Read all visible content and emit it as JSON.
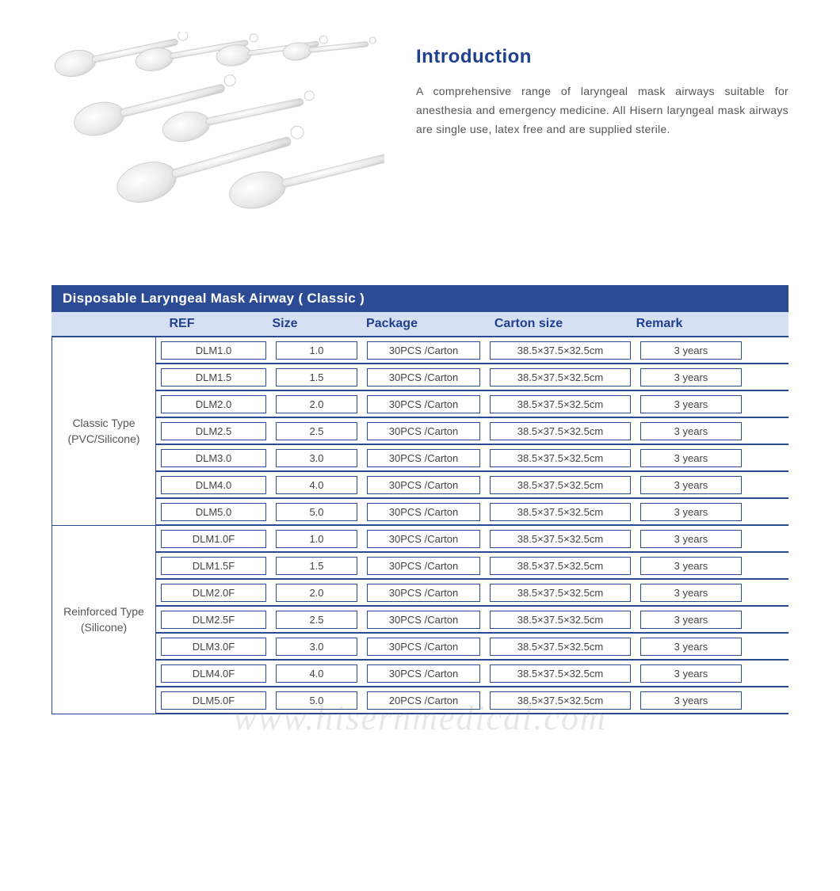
{
  "intro": {
    "title": "Introduction",
    "text": "A comprehensive range of laryngeal mask airways suitable for anesthesia and emergency medicine. All Hisern laryngeal mask airways are single use, latex free and are supplied sterile."
  },
  "section_title": "Disposable Laryngeal Mask Airway ( Classic )",
  "columns": {
    "ref": "REF",
    "size": "Size",
    "package": "Package",
    "carton": "Carton  size",
    "remark": "Remark"
  },
  "colors": {
    "brand_blue": "#2c4b95",
    "title_blue": "#1f3f8f",
    "header_bg": "#d6e0f2",
    "text_gray": "#555555",
    "white": "#ffffff",
    "watermark": "rgba(120,120,120,0.18)"
  },
  "groups": [
    {
      "type_label": "Classic Type\n(PVC/Silicone)",
      "rows": [
        {
          "ref": "DLM1.0",
          "size": "1.0",
          "package": "30PCS /Carton",
          "carton": "38.5×37.5×32.5cm",
          "remark": "3 years"
        },
        {
          "ref": "DLM1.5",
          "size": "1.5",
          "package": "30PCS /Carton",
          "carton": "38.5×37.5×32.5cm",
          "remark": "3 years"
        },
        {
          "ref": "DLM2.0",
          "size": "2.0",
          "package": "30PCS /Carton",
          "carton": "38.5×37.5×32.5cm",
          "remark": "3 years"
        },
        {
          "ref": "DLM2.5",
          "size": "2.5",
          "package": "30PCS /Carton",
          "carton": "38.5×37.5×32.5cm",
          "remark": "3 years"
        },
        {
          "ref": "DLM3.0",
          "size": "3.0",
          "package": "30PCS /Carton",
          "carton": "38.5×37.5×32.5cm",
          "remark": "3 years"
        },
        {
          "ref": "DLM4.0",
          "size": "4.0",
          "package": "30PCS /Carton",
          "carton": "38.5×37.5×32.5cm",
          "remark": "3 years"
        },
        {
          "ref": "DLM5.0",
          "size": "5.0",
          "package": "30PCS /Carton",
          "carton": "38.5×37.5×32.5cm",
          "remark": "3 years"
        }
      ]
    },
    {
      "type_label": "Reinforced Type\n(Silicone)",
      "rows": [
        {
          "ref": "DLM1.0F",
          "size": "1.0",
          "package": "30PCS /Carton",
          "carton": "38.5×37.5×32.5cm",
          "remark": "3 years"
        },
        {
          "ref": "DLM1.5F",
          "size": "1.5",
          "package": "30PCS /Carton",
          "carton": "38.5×37.5×32.5cm",
          "remark": "3 years"
        },
        {
          "ref": "DLM2.0F",
          "size": "2.0",
          "package": "30PCS /Carton",
          "carton": "38.5×37.5×32.5cm",
          "remark": "3 years"
        },
        {
          "ref": "DLM2.5F",
          "size": "2.5",
          "package": "30PCS /Carton",
          "carton": "38.5×37.5×32.5cm",
          "remark": "3 years"
        },
        {
          "ref": "DLM3.0F",
          "size": "3.0",
          "package": "30PCS /Carton",
          "carton": "38.5×37.5×32.5cm",
          "remark": "3 years"
        },
        {
          "ref": "DLM4.0F",
          "size": "4.0",
          "package": "30PCS /Carton",
          "carton": "38.5×37.5×32.5cm",
          "remark": "3 years"
        },
        {
          "ref": "DLM5.0F",
          "size": "5.0",
          "package": "20PCS /Carton",
          "carton": "38.5×37.5×32.5cm",
          "remark": "3 years"
        }
      ]
    }
  ],
  "watermark": "www.hisernmedical.com"
}
